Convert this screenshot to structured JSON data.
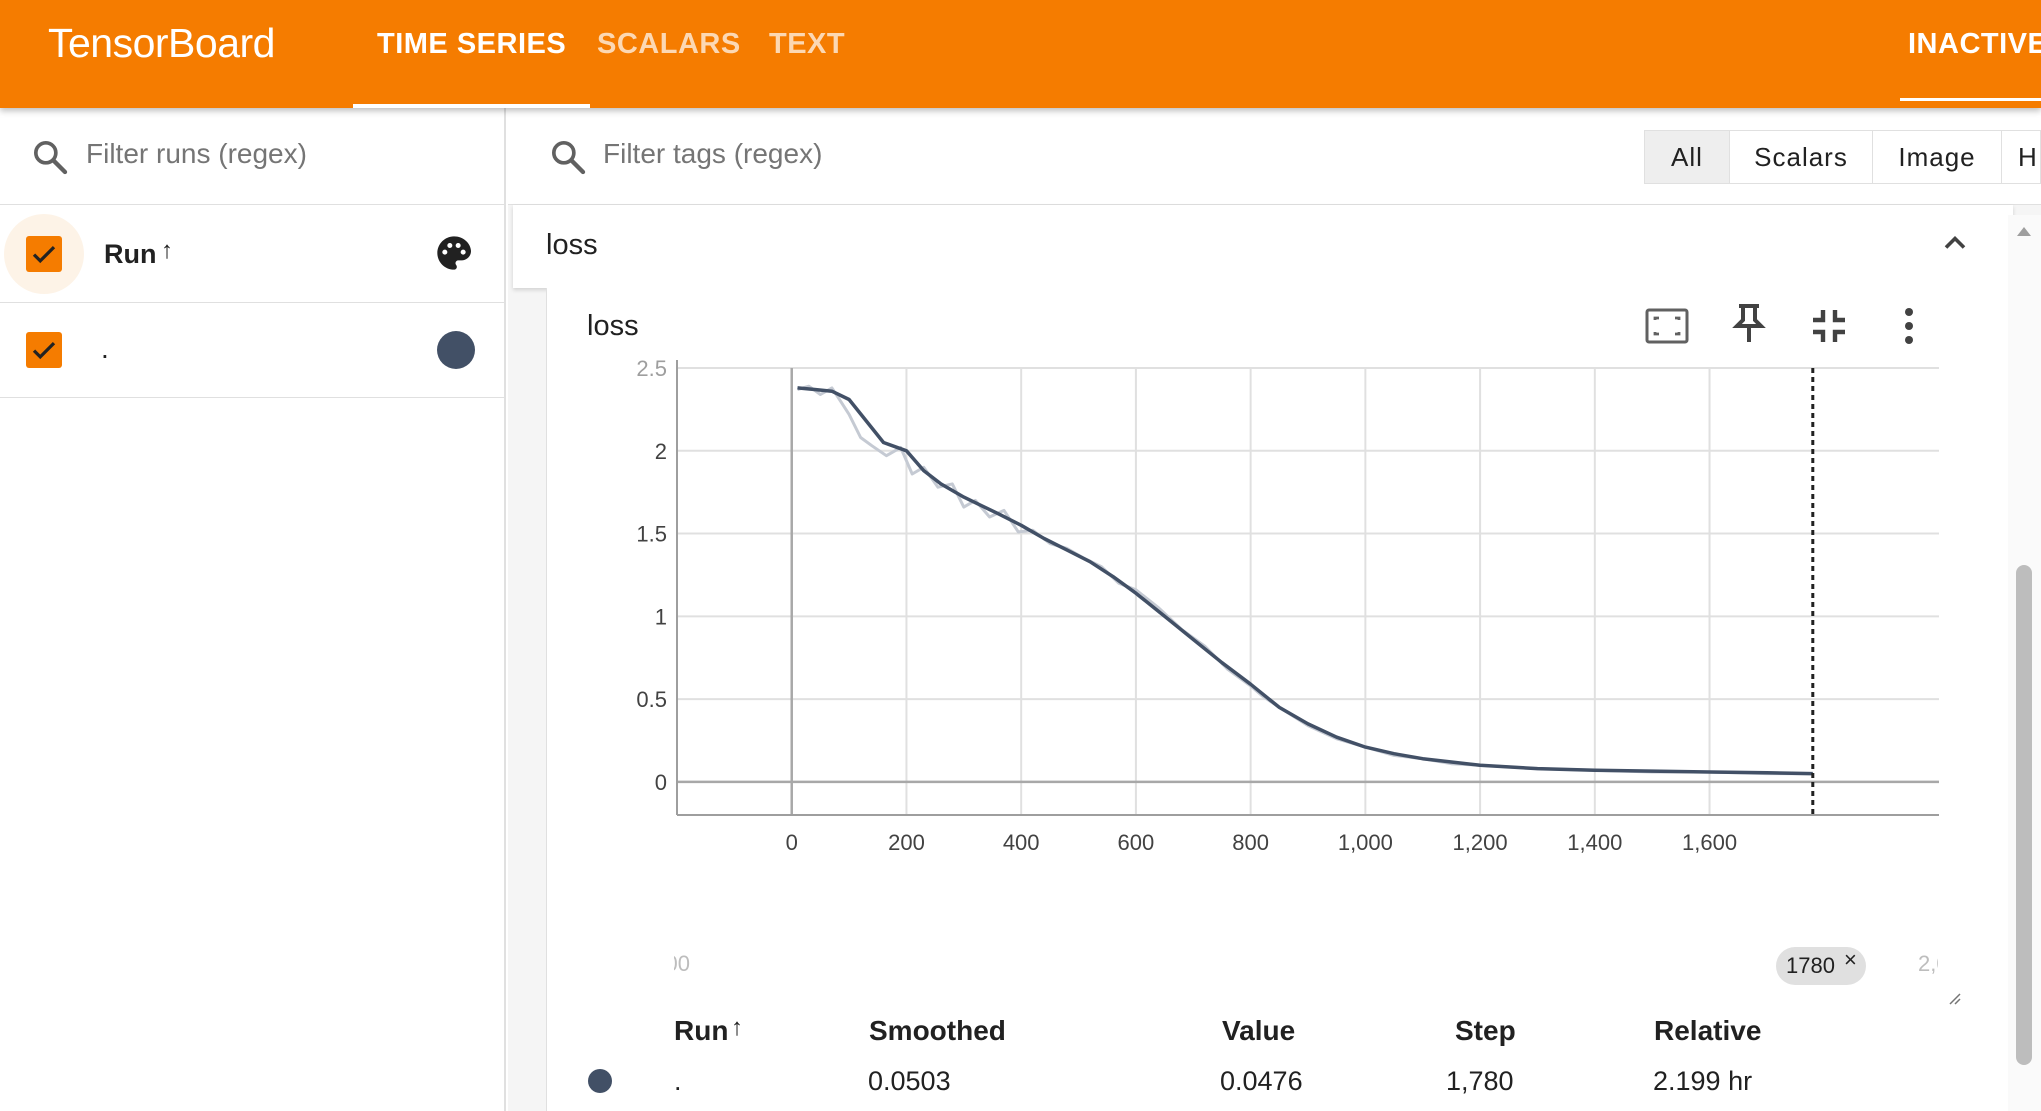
{
  "app": {
    "title": "TensorBoard"
  },
  "nav": {
    "tabs": [
      {
        "label": "TIME SERIES"
      },
      {
        "label": "SCALARS"
      },
      {
        "label": "TEXT"
      }
    ],
    "status": "INACTIVE"
  },
  "runs_panel": {
    "filter_placeholder": "Filter runs (regex)",
    "header_label": "Run",
    "sort_arrow": "↑",
    "runs": [
      {
        "name": ".",
        "color": "#425066",
        "checked": true
      }
    ]
  },
  "tags_filter": {
    "placeholder": "Filter tags (regex)",
    "type_tabs": [
      {
        "label": "All",
        "selected": true
      },
      {
        "label": "Scalars"
      },
      {
        "label": "Image"
      },
      {
        "label": "H"
      }
    ]
  },
  "group": {
    "title": "loss"
  },
  "card": {
    "title": "loss",
    "icons": [
      "fit-domain-icon",
      "pin-icon",
      "collapse-icon",
      "more-vert-icon"
    ],
    "hover_step": "1780",
    "hover_close": "×",
    "clipped_x_left": "00",
    "clipped_x_right": "2,0"
  },
  "chart_data": {
    "type": "line",
    "title": "loss",
    "xlabel": "",
    "ylabel": "",
    "xlim": [
      -200,
      2000
    ],
    "ylim": [
      -0.2,
      2.5
    ],
    "x_ticks": [
      0,
      200,
      400,
      600,
      800,
      1000,
      1200,
      1400,
      1600
    ],
    "x_tick_labels": [
      "0",
      "200",
      "400",
      "600",
      "800",
      "1,000",
      "1,200",
      "1,400",
      "1,600"
    ],
    "y_ticks": [
      0,
      0.5,
      1,
      1.5,
      2,
      2.5
    ],
    "y_tick_labels": [
      "0",
      "0.5",
      "1",
      "1.5",
      "2",
      "2.5"
    ],
    "grid": true,
    "hover_line_x": 1780,
    "series": [
      {
        "name": "",
        "role": "smoothed",
        "color": "#425066",
        "x": [
          10,
          40,
          70,
          100,
          130,
          160,
          200,
          230,
          260,
          300,
          330,
          360,
          400,
          440,
          480,
          520,
          560,
          600,
          650,
          700,
          750,
          800,
          850,
          900,
          950,
          1000,
          1050,
          1100,
          1150,
          1200,
          1300,
          1400,
          1500,
          1600,
          1700,
          1780
        ],
        "y": [
          2.38,
          2.37,
          2.36,
          2.31,
          2.18,
          2.05,
          2.0,
          1.88,
          1.8,
          1.72,
          1.67,
          1.62,
          1.55,
          1.47,
          1.4,
          1.33,
          1.24,
          1.14,
          1.0,
          0.86,
          0.72,
          0.59,
          0.45,
          0.35,
          0.27,
          0.21,
          0.17,
          0.14,
          0.12,
          0.1,
          0.08,
          0.07,
          0.065,
          0.06,
          0.055,
          0.05
        ]
      },
      {
        "name": "",
        "role": "raw",
        "color": "#c5cad3",
        "x": [
          10,
          30,
          50,
          70,
          85,
          100,
          120,
          140,
          165,
          190,
          210,
          230,
          255,
          280,
          300,
          320,
          345,
          370,
          395,
          420,
          450,
          480,
          510,
          540,
          570,
          600,
          640,
          680,
          720,
          760,
          800,
          820,
          850,
          900,
          950,
          1000,
          1050,
          1100,
          1150,
          1200,
          1300,
          1400,
          1500,
          1600,
          1700,
          1780
        ],
        "y": [
          2.37,
          2.39,
          2.34,
          2.38,
          2.3,
          2.22,
          2.08,
          2.03,
          1.97,
          2.02,
          1.86,
          1.9,
          1.78,
          1.8,
          1.66,
          1.7,
          1.6,
          1.64,
          1.51,
          1.52,
          1.44,
          1.41,
          1.35,
          1.3,
          1.2,
          1.16,
          1.05,
          0.92,
          0.82,
          0.68,
          0.58,
          0.52,
          0.45,
          0.34,
          0.26,
          0.21,
          0.16,
          0.14,
          0.11,
          0.1,
          0.08,
          0.07,
          0.06,
          0.06,
          0.05,
          0.048
        ]
      }
    ]
  },
  "table": {
    "headers": [
      "Run",
      "Smoothed",
      "Value",
      "Step",
      "Relative"
    ],
    "sort_arrow": "↑",
    "rows": [
      {
        "color": "#425066",
        "run": ".",
        "smoothed": "0.0503",
        "value": "0.0476",
        "step": "1,780",
        "relative": "2.199 hr"
      }
    ]
  }
}
